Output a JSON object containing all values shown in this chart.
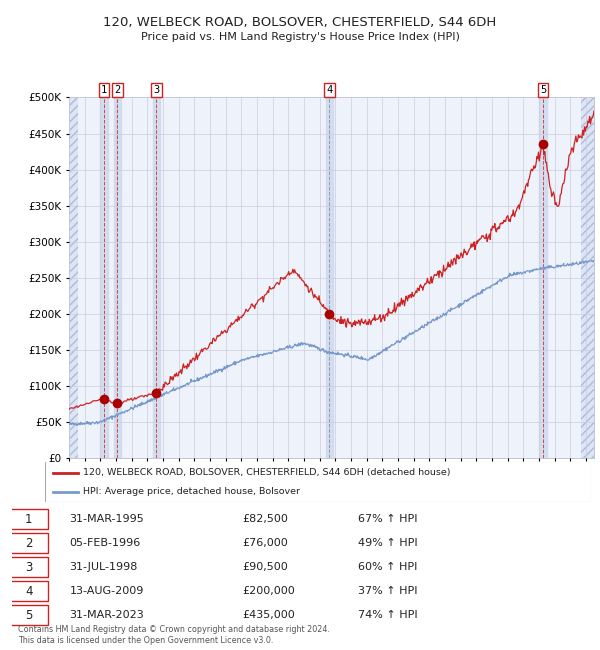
{
  "title_line1": "120, WELBECK ROAD, BOLSOVER, CHESTERFIELD, S44 6DH",
  "title_line2": "Price paid vs. HM Land Registry's House Price Index (HPI)",
  "sales": [
    {
      "num": 1,
      "date_year": 1995.25,
      "price": 82500,
      "label": "31-MAR-1995",
      "pct": "67%",
      "dir": "↑"
    },
    {
      "num": 2,
      "date_year": 1996.09,
      "price": 76000,
      "label": "05-FEB-1996",
      "pct": "49%",
      "dir": "↑"
    },
    {
      "num": 3,
      "date_year": 1998.58,
      "price": 90500,
      "label": "31-JUL-1998",
      "pct": "60%",
      "dir": "↑"
    },
    {
      "num": 4,
      "date_year": 2009.62,
      "price": 200000,
      "label": "13-AUG-2009",
      "pct": "37%",
      "dir": "↑"
    },
    {
      "num": 5,
      "date_year": 2023.25,
      "price": 435000,
      "label": "31-MAR-2023",
      "pct": "74%",
      "dir": "↑"
    }
  ],
  "hpi_color": "#7799cc",
  "price_color": "#cc2222",
  "sale_marker_color": "#aa0000",
  "background_plot": "#eef2fa",
  "background_fig": "#ffffff",
  "grid_color": "#ccccdd",
  "vline_sale_color": "#cc2222",
  "shade_color": "#ccd8ee",
  "hatch_color": "#aabbdd",
  "ylim": [
    0,
    500000
  ],
  "xlim_start": 1993.0,
  "xlim_end": 2026.5,
  "ylabel_ticks": [
    0,
    50000,
    100000,
    150000,
    200000,
    250000,
    300000,
    350000,
    400000,
    450000,
    500000
  ],
  "legend_line1": "120, WELBECK ROAD, BOLSOVER, CHESTERFIELD, S44 6DH (detached house)",
  "legend_line2": "HPI: Average price, detached house, Bolsover",
  "footer": "Contains HM Land Registry data © Crown copyright and database right 2024.\nThis data is licensed under the Open Government Licence v3.0."
}
